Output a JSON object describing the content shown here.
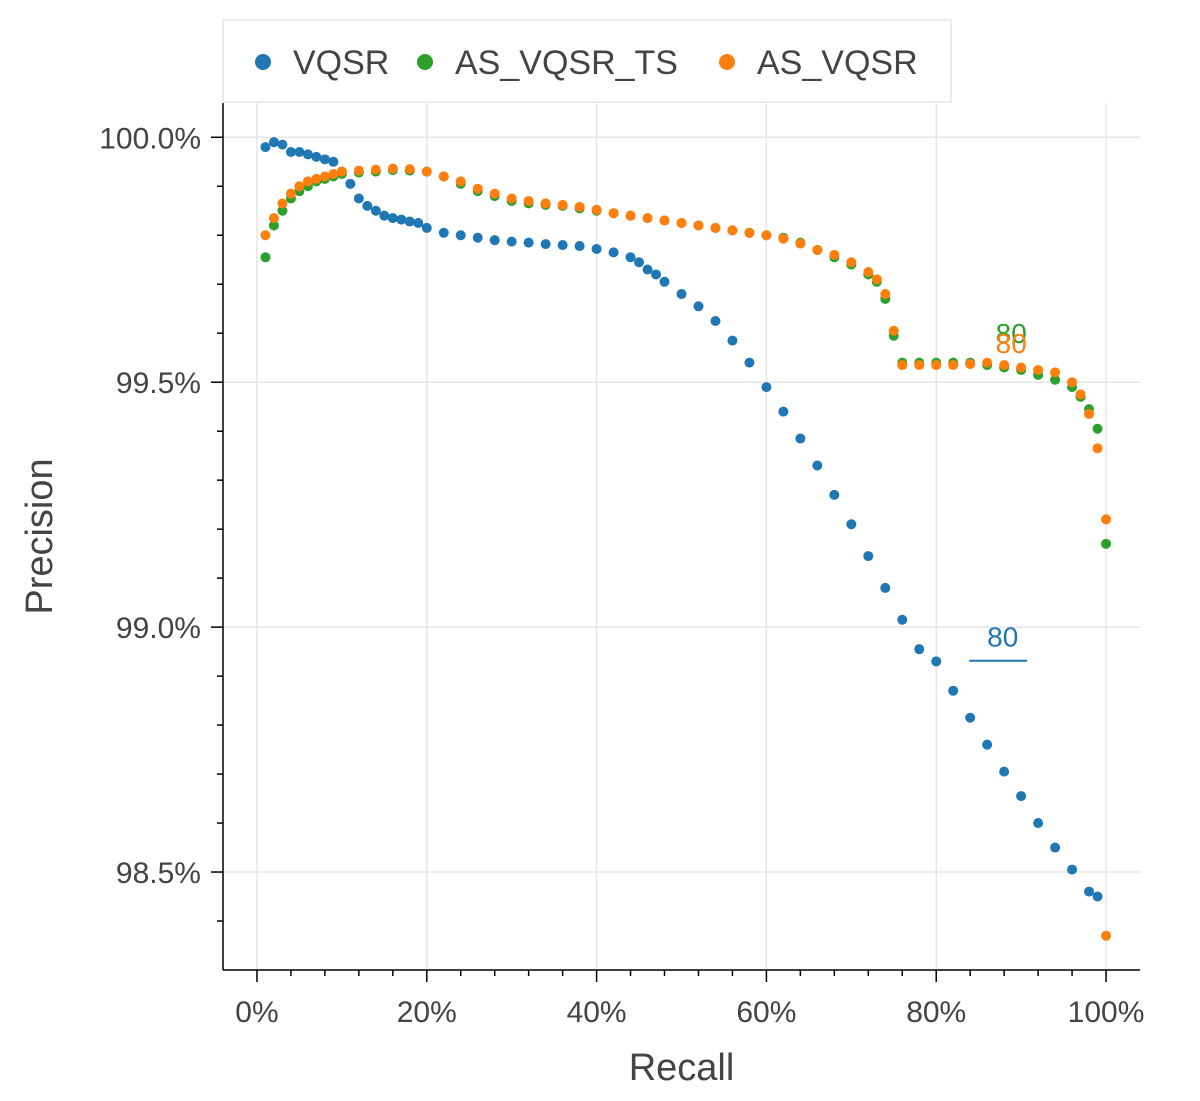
{
  "chart_data": {
    "type": "scatter",
    "title": "",
    "xlabel": "Recall",
    "ylabel": "Precision",
    "xlim": [
      -0.04,
      1.04
    ],
    "ylim": [
      98.3,
      100.07
    ],
    "x_ticks": [
      0,
      0.2,
      0.4,
      0.6,
      0.8,
      1.0
    ],
    "x_tick_labels": [
      "0%",
      "20%",
      "40%",
      "60%",
      "80%",
      "100%"
    ],
    "y_ticks": [
      98.5,
      99.0,
      99.5,
      100.0
    ],
    "y_tick_labels": [
      "98.5%",
      "99.0%",
      "99.5%",
      "100.0%"
    ],
    "grid": true,
    "legend_position": "top-left",
    "series": [
      {
        "name": "VQSR",
        "color": "#1f77b4",
        "points": [
          [
            0.01,
            99.98
          ],
          [
            0.02,
            99.99
          ],
          [
            0.03,
            99.985
          ],
          [
            0.04,
            99.97
          ],
          [
            0.05,
            99.97
          ],
          [
            0.06,
            99.965
          ],
          [
            0.07,
            99.96
          ],
          [
            0.08,
            99.955
          ],
          [
            0.09,
            99.95
          ],
          [
            0.1,
            99.93
          ],
          [
            0.11,
            99.905
          ],
          [
            0.12,
            99.875
          ],
          [
            0.13,
            99.86
          ],
          [
            0.14,
            99.85
          ],
          [
            0.15,
            99.84
          ],
          [
            0.16,
            99.835
          ],
          [
            0.17,
            99.832
          ],
          [
            0.18,
            99.828
          ],
          [
            0.19,
            99.825
          ],
          [
            0.2,
            99.815
          ],
          [
            0.22,
            99.805
          ],
          [
            0.24,
            99.8
          ],
          [
            0.26,
            99.795
          ],
          [
            0.28,
            99.79
          ],
          [
            0.3,
            99.787
          ],
          [
            0.32,
            99.785
          ],
          [
            0.34,
            99.782
          ],
          [
            0.36,
            99.78
          ],
          [
            0.38,
            99.778
          ],
          [
            0.4,
            99.772
          ],
          [
            0.42,
            99.765
          ],
          [
            0.44,
            99.755
          ],
          [
            0.45,
            99.745
          ],
          [
            0.46,
            99.73
          ],
          [
            0.47,
            99.72
          ],
          [
            0.48,
            99.705
          ],
          [
            0.5,
            99.68
          ],
          [
            0.52,
            99.655
          ],
          [
            0.54,
            99.625
          ],
          [
            0.56,
            99.585
          ],
          [
            0.58,
            99.54
          ],
          [
            0.6,
            99.49
          ],
          [
            0.62,
            99.44
          ],
          [
            0.64,
            99.385
          ],
          [
            0.66,
            99.33
          ],
          [
            0.68,
            99.27
          ],
          [
            0.7,
            99.21
          ],
          [
            0.72,
            99.145
          ],
          [
            0.74,
            99.08
          ],
          [
            0.76,
            99.015
          ],
          [
            0.78,
            98.955
          ],
          [
            0.8,
            98.93
          ],
          [
            0.82,
            98.87
          ],
          [
            0.84,
            98.815
          ],
          [
            0.86,
            98.76
          ],
          [
            0.88,
            98.705
          ],
          [
            0.9,
            98.655
          ],
          [
            0.92,
            98.6
          ],
          [
            0.94,
            98.55
          ],
          [
            0.96,
            98.505
          ],
          [
            0.98,
            98.46
          ],
          [
            0.99,
            98.45
          ]
        ]
      },
      {
        "name": "AS_VQSR_TS",
        "color": "#2ca02c",
        "points": [
          [
            0.01,
            99.755
          ],
          [
            0.02,
            99.82
          ],
          [
            0.03,
            99.85
          ],
          [
            0.04,
            99.875
          ],
          [
            0.05,
            99.89
          ],
          [
            0.06,
            99.9
          ],
          [
            0.07,
            99.91
          ],
          [
            0.08,
            99.915
          ],
          [
            0.09,
            99.92
          ],
          [
            0.1,
            99.925
          ],
          [
            0.12,
            99.928
          ],
          [
            0.14,
            99.93
          ],
          [
            0.16,
            99.933
          ],
          [
            0.18,
            99.932
          ],
          [
            0.2,
            99.93
          ],
          [
            0.22,
            99.92
          ],
          [
            0.24,
            99.905
          ],
          [
            0.26,
            99.89
          ],
          [
            0.28,
            99.88
          ],
          [
            0.3,
            99.87
          ],
          [
            0.32,
            99.865
          ],
          [
            0.34,
            99.862
          ],
          [
            0.36,
            99.86
          ],
          [
            0.38,
            99.855
          ],
          [
            0.4,
            99.85
          ],
          [
            0.42,
            99.845
          ],
          [
            0.44,
            99.84
          ],
          [
            0.46,
            99.835
          ],
          [
            0.48,
            99.83
          ],
          [
            0.5,
            99.825
          ],
          [
            0.52,
            99.82
          ],
          [
            0.54,
            99.815
          ],
          [
            0.56,
            99.81
          ],
          [
            0.58,
            99.805
          ],
          [
            0.6,
            99.8
          ],
          [
            0.62,
            99.795
          ],
          [
            0.64,
            99.785
          ],
          [
            0.66,
            99.77
          ],
          [
            0.68,
            99.755
          ],
          [
            0.7,
            99.74
          ],
          [
            0.72,
            99.72
          ],
          [
            0.73,
            99.705
          ],
          [
            0.74,
            99.67
          ],
          [
            0.75,
            99.595
          ],
          [
            0.76,
            99.54
          ],
          [
            0.78,
            99.54
          ],
          [
            0.8,
            99.54
          ],
          [
            0.82,
            99.54
          ],
          [
            0.84,
            99.54
          ],
          [
            0.86,
            99.535
          ],
          [
            0.88,
            99.53
          ],
          [
            0.9,
            99.525
          ],
          [
            0.92,
            99.515
          ],
          [
            0.94,
            99.505
          ],
          [
            0.96,
            99.49
          ],
          [
            0.97,
            99.47
          ],
          [
            0.98,
            99.445
          ],
          [
            0.99,
            99.405
          ],
          [
            1.0,
            99.17
          ]
        ]
      },
      {
        "name": "AS_VQSR",
        "color": "#ff7f0e",
        "points": [
          [
            0.01,
            99.8
          ],
          [
            0.02,
            99.835
          ],
          [
            0.03,
            99.865
          ],
          [
            0.04,
            99.885
          ],
          [
            0.05,
            99.9
          ],
          [
            0.06,
            99.91
          ],
          [
            0.07,
            99.915
          ],
          [
            0.08,
            99.92
          ],
          [
            0.09,
            99.925
          ],
          [
            0.1,
            99.93
          ],
          [
            0.12,
            99.932
          ],
          [
            0.14,
            99.934
          ],
          [
            0.16,
            99.936
          ],
          [
            0.18,
            99.935
          ],
          [
            0.2,
            99.93
          ],
          [
            0.22,
            99.92
          ],
          [
            0.24,
            99.91
          ],
          [
            0.26,
            99.895
          ],
          [
            0.28,
            99.885
          ],
          [
            0.3,
            99.875
          ],
          [
            0.32,
            99.87
          ],
          [
            0.34,
            99.865
          ],
          [
            0.36,
            99.862
          ],
          [
            0.38,
            99.858
          ],
          [
            0.4,
            99.852
          ],
          [
            0.42,
            99.845
          ],
          [
            0.44,
            99.84
          ],
          [
            0.46,
            99.835
          ],
          [
            0.48,
            99.83
          ],
          [
            0.5,
            99.825
          ],
          [
            0.52,
            99.82
          ],
          [
            0.54,
            99.815
          ],
          [
            0.56,
            99.81
          ],
          [
            0.58,
            99.805
          ],
          [
            0.6,
            99.8
          ],
          [
            0.62,
            99.793
          ],
          [
            0.64,
            99.783
          ],
          [
            0.66,
            99.77
          ],
          [
            0.68,
            99.76
          ],
          [
            0.7,
            99.745
          ],
          [
            0.72,
            99.725
          ],
          [
            0.73,
            99.71
          ],
          [
            0.74,
            99.68
          ],
          [
            0.75,
            99.605
          ],
          [
            0.76,
            99.535
          ],
          [
            0.78,
            99.535
          ],
          [
            0.8,
            99.535
          ],
          [
            0.82,
            99.535
          ],
          [
            0.84,
            99.537
          ],
          [
            0.86,
            99.54
          ],
          [
            0.88,
            99.535
          ],
          [
            0.9,
            99.53
          ],
          [
            0.92,
            99.525
          ],
          [
            0.94,
            99.52
          ],
          [
            0.96,
            99.5
          ],
          [
            0.97,
            99.475
          ],
          [
            0.98,
            99.435
          ],
          [
            0.99,
            99.365
          ],
          [
            1.0,
            99.22
          ],
          [
            1.0,
            98.37
          ]
        ]
      }
    ],
    "annotations": [
      {
        "text": "80",
        "series": "VQSR",
        "x": 0.86,
        "y": 98.96
      },
      {
        "text": "80",
        "series": "AS_VQSR_TS",
        "x": 0.87,
        "y": 99.58
      },
      {
        "text": "80",
        "series": "AS_VQSR",
        "x": 0.87,
        "y": 99.56
      }
    ]
  }
}
